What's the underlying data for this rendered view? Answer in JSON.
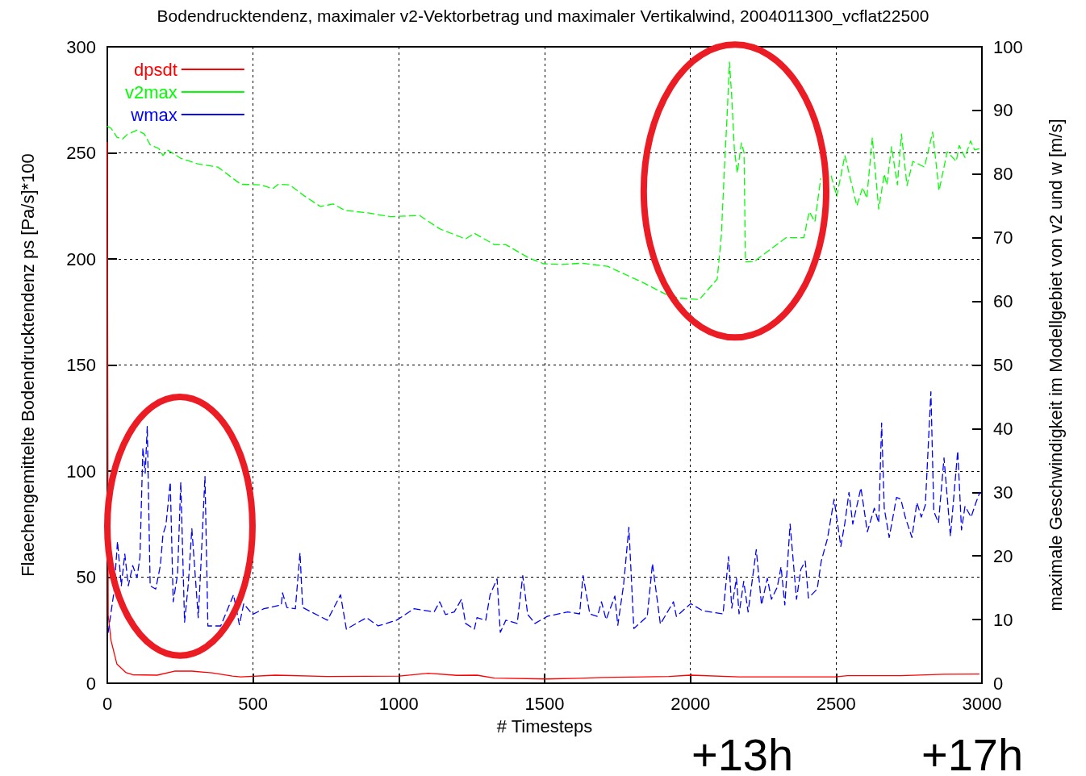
{
  "chart_data": {
    "type": "line",
    "title": "Bodendrucktendenz, maximaler v2-Vektorbetrag und maximaler Vertikalwind, 2004011300_vcflat22500",
    "xlabel": "# Timesteps",
    "ylabel": "Flaechengemittelte Bodendrucktendenz ps [Pa/s]*100",
    "y2label": "maximale Geschwindigkeit im Modellgebiet von v2 und w [m/s]",
    "annotations": [
      "+13h",
      "+17h"
    ],
    "xlim": [
      0,
      3000
    ],
    "xticks": [
      0,
      500,
      1000,
      1500,
      2000,
      2500,
      3000
    ],
    "ylim": [
      0,
      300
    ],
    "yticks": [
      0,
      50,
      100,
      150,
      200,
      250,
      300
    ],
    "y2lim": [
      0,
      100
    ],
    "y2ticks": [
      0,
      10,
      20,
      30,
      40,
      50,
      60,
      70,
      80,
      90,
      100
    ],
    "grid": true,
    "legend": "top left",
    "marker": "none",
    "series": [
      {
        "name": "dpsdt",
        "color": "#ff0000",
        "line_style": "solid",
        "x": [
          0,
          3,
          13,
          33,
          63,
          87,
          171,
          230,
          290,
          359,
          429,
          458,
          577,
          755,
          1002,
          1101,
          1199,
          1268,
          1328,
          1506,
          1620,
          1695,
          1796,
          1926,
          2001,
          2167,
          2496,
          2539,
          2722,
          2870,
          2990
        ],
        "values": [
          255,
          32,
          20,
          9,
          5.1,
          4,
          3.8,
          5.7,
          5.7,
          4.9,
          3.4,
          3,
          3.8,
          3.2,
          3.4,
          4.7,
          3.7,
          3.8,
          2.4,
          2,
          2.3,
          2.7,
          2.9,
          3.2,
          3.8,
          3,
          3,
          3.6,
          3.6,
          4.2,
          4.3
        ]
      },
      {
        "name": "v2max",
        "color": "#00ff00",
        "line_style": "dashed",
        "axis": "y2",
        "x": [
          0,
          13,
          33,
          52,
          68,
          102,
          127,
          147,
          177,
          191,
          206,
          251,
          310,
          379,
          458,
          528,
          567,
          587,
          626,
          675,
          731,
          775,
          814,
          894,
          972,
          1071,
          1140,
          1229,
          1259,
          1328,
          1367,
          1447,
          1497,
          1558,
          1627,
          1716,
          1835,
          1912,
          1962,
          2031,
          2092,
          2106,
          2117,
          2126,
          2134,
          2142,
          2151,
          2161,
          2175,
          2184,
          2189,
          2220,
          2328,
          2389,
          2408,
          2427,
          2447,
          2466,
          2483,
          2502,
          2530,
          2571,
          2591,
          2605,
          2624,
          2646,
          2665,
          2674,
          2690,
          2710,
          2724,
          2743,
          2763,
          2803,
          2831,
          2853,
          2881,
          2912,
          2922,
          2942,
          2961,
          2975,
          2990
        ],
        "values": [
          87.5,
          87.2,
          85.8,
          85.5,
          86.2,
          86.9,
          86.3,
          84.6,
          84,
          82.9,
          83.8,
          82.5,
          81.6,
          81.1,
          78.4,
          78.3,
          77.7,
          78.4,
          78.3,
          76.6,
          74.9,
          75.3,
          74.3,
          73.9,
          73.3,
          73.5,
          71.4,
          69.8,
          70.7,
          68.9,
          68.9,
          66.8,
          65.9,
          65.8,
          66,
          65.5,
          63,
          61.2,
          60.5,
          60.3,
          63.5,
          70.2,
          81.1,
          89.2,
          97.6,
          92,
          83.8,
          80.2,
          84.9,
          83.4,
          66.2,
          66.3,
          70,
          70,
          74.1,
          72.5,
          79.3,
          null,
          79.7,
          76.5,
          82.9,
          75,
          77.9,
          76.2,
          85.7,
          74.5,
          80,
          78.3,
          84.3,
          78.3,
          86.3,
          78.2,
          82,
          81.1,
          86.6,
          77.4,
          83.5,
          82,
          84.5,
          82.6,
          85.2,
          83.8,
          84
        ]
      },
      {
        "name": "wmax",
        "color": "#0000ff",
        "line_style": "dashed",
        "axis": "y2",
        "x": [
          3,
          13,
          23,
          35,
          48,
          60,
          72,
          87,
          102,
          112,
          122,
          130,
          137,
          147,
          166,
          182,
          191,
          201,
          216,
          226,
          241,
          252,
          265,
          278,
          290,
          312,
          321,
          335,
          345,
          389,
          433,
          453,
          468,
          498,
          537,
          597,
          601,
          616,
          645,
          661,
          670,
          755,
          800,
          820,
          889,
          929,
          992,
          1052,
          1121,
          1140,
          1160,
          1190,
          1215,
          1229,
          1259,
          1268,
          1298,
          1313,
          1337,
          1348,
          1367,
          1406,
          1425,
          1442,
          1467,
          1509,
          1579,
          1620,
          1632,
          1655,
          1681,
          1695,
          1711,
          1741,
          1751,
          1771,
          1789,
          1806,
          1852,
          1870,
          1897,
          1942,
          1952,
          2001,
          2042,
          2112,
          2131,
          2142,
          2158,
          2167,
          2183,
          2198,
          2226,
          2244,
          2264,
          2278,
          2298,
          2311,
          2324,
          2342,
          2364,
          2379,
          2394,
          2405,
          2435,
          2449,
          2470,
          2493,
          2516,
          2530,
          2544,
          2557,
          2585,
          2607,
          2631,
          2646,
          2656,
          2665,
          2682,
          2707,
          2722,
          2737,
          2760,
          2777,
          2792,
          2806,
          2825,
          2835,
          2851,
          2870,
          2892,
          2917,
          2930,
          2942,
          2963,
          2978,
          2993
        ],
        "values": [
          8,
          11.2,
          14.4,
          22.3,
          15.3,
          20.3,
          15.3,
          18.5,
          16.6,
          19.8,
          37,
          33,
          40.4,
          15.3,
          14.8,
          18.5,
          23.4,
          24.8,
          31.6,
          12.8,
          17.1,
          31.6,
          9.6,
          15.7,
          24.3,
          10.3,
          18.5,
          32.5,
          9,
          9,
          13.9,
          9.2,
          12.5,
          10.8,
          11.7,
          12.3,
          14.2,
          11.9,
          11.7,
          20.5,
          11.9,
          9.9,
          13.9,
          8.5,
          10.3,
          9,
          9.9,
          11.7,
          11.2,
          12.8,
          10.8,
          11.2,
          13.2,
          9.4,
          8.5,
          10.3,
          9.9,
          13.9,
          16.4,
          8,
          9.9,
          9.4,
          16.9,
          10.8,
          9.4,
          10.5,
          11.2,
          10.9,
          16.9,
          10.9,
          10.5,
          12.8,
          10,
          13.7,
          9.1,
          15.5,
          24.5,
          8.6,
          10.5,
          18.8,
          9.3,
          12.8,
          10.5,
          12.5,
          11.4,
          10.9,
          19.9,
          11.8,
          16.5,
          10.9,
          16,
          11.2,
          21,
          12.3,
          16.5,
          13.2,
          15.1,
          18.3,
          12.3,
          25,
          13.2,
          17.9,
          19.2,
          13.4,
          14.8,
          19.2,
          22.7,
          28.9,
          21.5,
          25.2,
          30,
          25,
          30.7,
          23.8,
          27.5,
          25.2,
          40.9,
          27.5,
          22.9,
          29.2,
          28.9,
          26.1,
          22.9,
          28.4,
          26.1,
          28,
          45.8,
          27,
          25.2,
          35.4,
          23.1,
          36.5,
          24.1,
          27.8,
          26.1,
          28.2,
          30
        ]
      }
    ]
  }
}
